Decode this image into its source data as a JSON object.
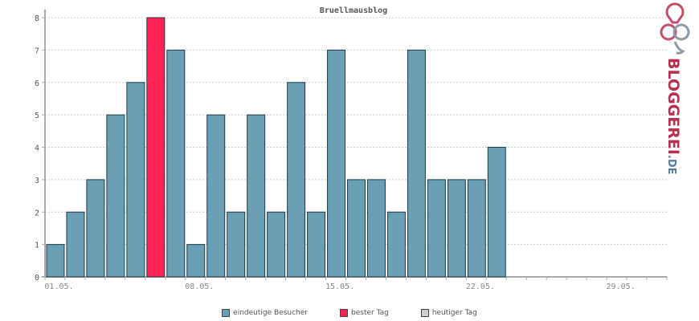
{
  "chart_data": {
    "type": "bar",
    "title": "Bruellmausblog",
    "xlabel": "",
    "ylabel": "",
    "ylim": [
      0,
      8
    ],
    "yticks": [
      0,
      1,
      2,
      3,
      4,
      5,
      6,
      7,
      8
    ],
    "grid": true,
    "legend_position": "bottom",
    "slots": 31,
    "x_tick_labels": [
      {
        "label": "01.05.",
        "index": 0
      },
      {
        "label": "08.05.",
        "index": 7
      },
      {
        "label": "15.05.",
        "index": 14
      },
      {
        "label": "22.05.",
        "index": 21
      },
      {
        "label": "29.05.",
        "index": 28
      }
    ],
    "values": [
      1,
      2,
      3,
      5,
      6,
      8,
      7,
      1,
      5,
      2,
      5,
      2,
      6,
      2,
      7,
      3,
      3,
      2,
      7,
      3,
      3,
      3,
      4
    ],
    "best_day_index": 5,
    "colors": {
      "visitors": "#6a9fb5",
      "best": "#ff2255",
      "today": "#cccccc",
      "bar_stroke": "#1d3a47",
      "axis": "#aaaaaa",
      "grid": "#cccccc"
    },
    "legend": [
      {
        "label": "eindeutige Besucher",
        "color": "#6a9fb5"
      },
      {
        "label": "bester Tag",
        "color": "#ff2255"
      },
      {
        "label": "heutiger Tag",
        "color": "#cccccc"
      }
    ]
  },
  "logo": {
    "text_main": "BLOGGEREI",
    "text_suffix": ".DE",
    "color_main": "#b5304e",
    "color_suffix": "#5a7c98",
    "icon": "speech-bubble-logo-icon"
  }
}
